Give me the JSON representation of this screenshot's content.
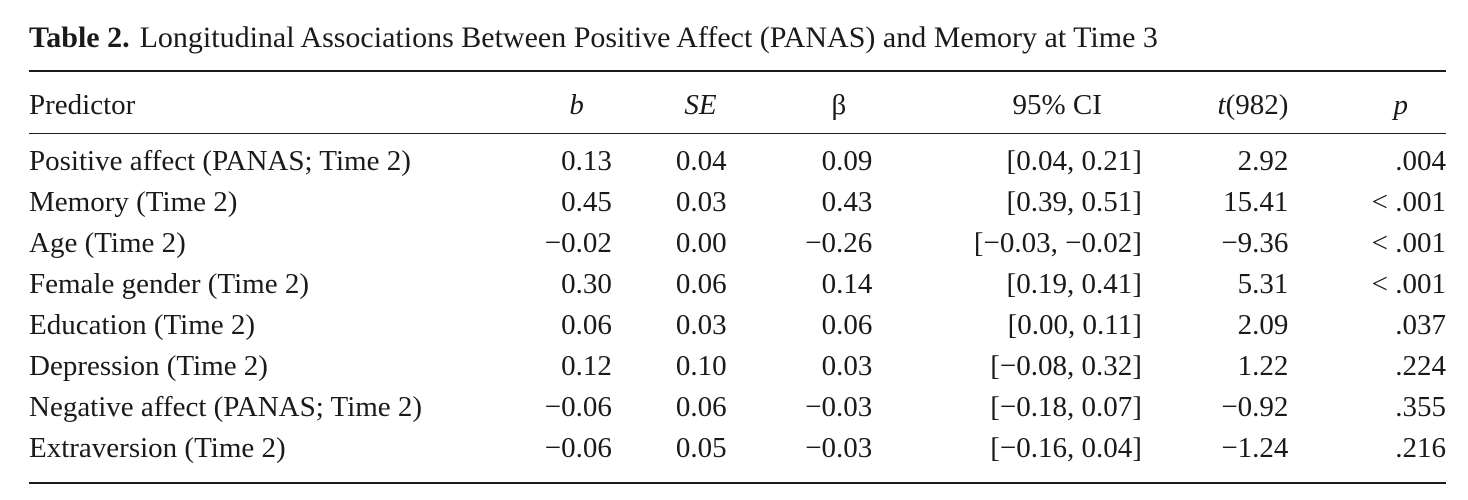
{
  "caption": {
    "label": "Table 2.",
    "title": "Longitudinal Associations Between Positive Affect (PANAS) and Memory at Time 3"
  },
  "table": {
    "headers": {
      "predictor": "Predictor",
      "b": "b",
      "se": "SE",
      "beta": "β",
      "ci": "95% CI",
      "t_letter": "t",
      "t_df": "(982)",
      "p": "p"
    },
    "rows": [
      {
        "predictor": "Positive affect (PANAS; Time 2)",
        "b": "0.13",
        "se": "0.04",
        "beta": "0.09",
        "ci": "[0.04, 0.21]",
        "t": "2.92",
        "p": ".004"
      },
      {
        "predictor": "Memory (Time 2)",
        "b": "0.45",
        "se": "0.03",
        "beta": "0.43",
        "ci": "[0.39, 0.51]",
        "t": "15.41",
        "p": "< .001"
      },
      {
        "predictor": "Age (Time 2)",
        "b": "−0.02",
        "se": "0.00",
        "beta": "−0.26",
        "ci": "[−0.03, −0.02]",
        "t": "−9.36",
        "p": "< .001"
      },
      {
        "predictor": "Female gender (Time 2)",
        "b": "0.30",
        "se": "0.06",
        "beta": "0.14",
        "ci": "[0.19, 0.41]",
        "t": "5.31",
        "p": "< .001"
      },
      {
        "predictor": "Education (Time 2)",
        "b": "0.06",
        "se": "0.03",
        "beta": "0.06",
        "ci": "[0.00, 0.11]",
        "t": "2.09",
        "p": ".037"
      },
      {
        "predictor": "Depression (Time 2)",
        "b": "0.12",
        "se": "0.10",
        "beta": "0.03",
        "ci": "[−0.08, 0.32]",
        "t": "1.22",
        "p": ".224"
      },
      {
        "predictor": "Negative affect (PANAS; Time 2)",
        "b": "−0.06",
        "se": "0.06",
        "beta": "−0.03",
        "ci": "[−0.18, 0.07]",
        "t": "−0.92",
        "p": ".355"
      },
      {
        "predictor": "Extraversion (Time 2)",
        "b": "−0.06",
        "se": "0.05",
        "beta": "−0.03",
        "ci": "[−0.16, 0.04]",
        "t": "−1.24",
        "p": ".216"
      }
    ]
  }
}
